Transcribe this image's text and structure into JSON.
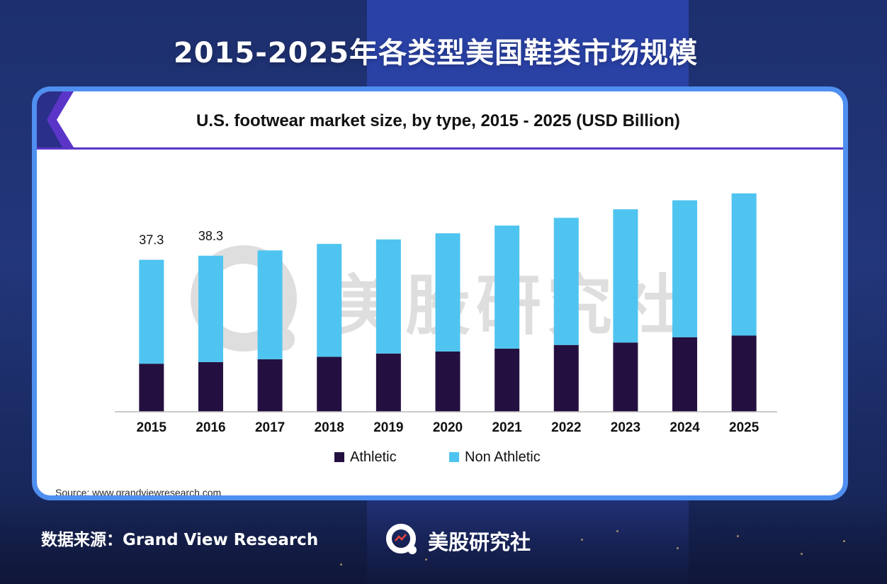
{
  "page": {
    "main_title": "2015-2025年各类型美国鞋类市场规模",
    "footer_source": "数据来源：Grand View Research",
    "brand_name": "美股研究社",
    "watermark_text": "美股研究社",
    "source_line": "Source: www.grandviewresearch.com"
  },
  "colors": {
    "athletic": "#241040",
    "non_athletic": "#4fc4f0",
    "card_border": "#4f8ff0",
    "header_rule": "#5a35c8"
  },
  "chart_data": {
    "type": "bar",
    "stacked": true,
    "title": "U.S. footwear market size, by type, 2015 - 2025 (USD Billion)",
    "xlabel": "",
    "ylabel": "",
    "ylim": [
      0,
      60
    ],
    "grid": false,
    "legend_position": "bottom",
    "categories": [
      "2015",
      "2016",
      "2017",
      "2018",
      "2019",
      "2020",
      "2021",
      "2022",
      "2023",
      "2024",
      "2025"
    ],
    "series": [
      {
        "name": "Athletic",
        "values": [
          11.8,
          12.2,
          12.9,
          13.5,
          14.3,
          14.8,
          15.5,
          16.4,
          17.0,
          18.3,
          18.7
        ]
      },
      {
        "name": "Non Athletic",
        "values": [
          25.5,
          26.1,
          26.7,
          27.7,
          28.0,
          29.0,
          30.2,
          31.2,
          32.7,
          33.6,
          34.9
        ]
      }
    ],
    "data_labels": [
      {
        "category": "2015",
        "text": "37.3"
      },
      {
        "category": "2016",
        "text": "38.3"
      }
    ]
  }
}
